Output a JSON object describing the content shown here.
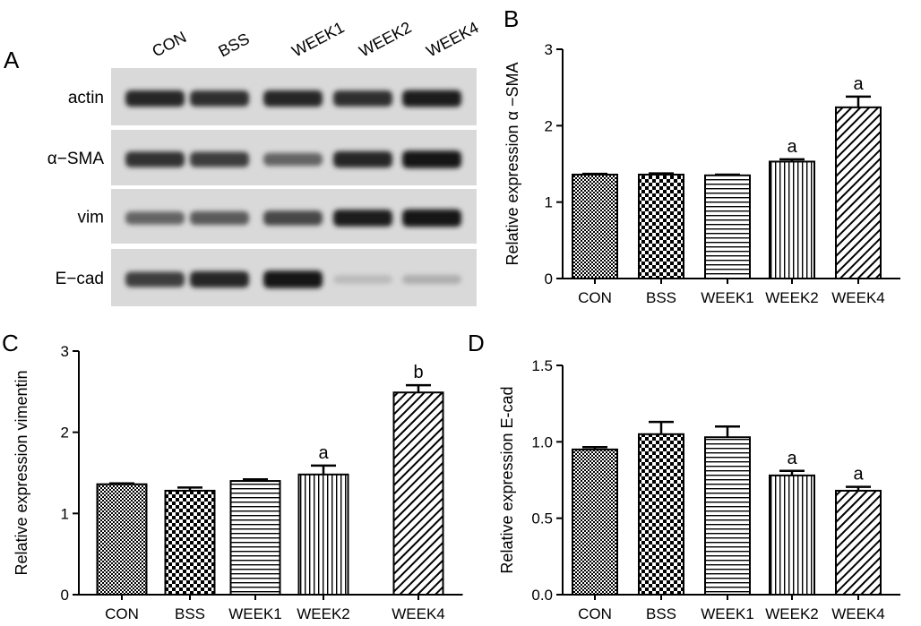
{
  "panel_a": {
    "letter": "A",
    "lanes": [
      "CON",
      "BSS",
      "WEEK1",
      "WEEK2",
      "WEEK4"
    ],
    "rows": [
      {
        "label": "actin",
        "intensity": [
          0.85,
          0.82,
          0.85,
          0.82,
          0.9
        ]
      },
      {
        "label": "α−SMA",
        "intensity": [
          0.8,
          0.75,
          0.55,
          0.85,
          0.95
        ]
      },
      {
        "label": "vim",
        "intensity": [
          0.55,
          0.6,
          0.7,
          0.9,
          0.95
        ]
      },
      {
        "label": "E−cad",
        "intensity": [
          0.75,
          0.85,
          0.95,
          0.12,
          0.18
        ]
      }
    ]
  },
  "chart_data": [
    {
      "panel": "B",
      "type": "bar",
      "categories": [
        "CON",
        "BSS",
        "WEEK1",
        "WEEK2",
        "WEEK4"
      ],
      "values": [
        1.36,
        1.36,
        1.35,
        1.53,
        2.24
      ],
      "errors": [
        0.01,
        0.015,
        0.01,
        0.03,
        0.14
      ],
      "annotations": [
        "",
        "",
        "",
        "a",
        "a"
      ],
      "ylabel": "Relative expression α −SMA",
      "ylim": [
        0,
        3
      ],
      "yticks": [
        0,
        1,
        2,
        3
      ]
    },
    {
      "panel": "C",
      "type": "bar",
      "categories": [
        "CON",
        "BSS",
        "WEEK1",
        "WEEK2",
        "WEEK4"
      ],
      "values": [
        1.36,
        1.28,
        1.4,
        1.48,
        2.49
      ],
      "errors": [
        0.01,
        0.04,
        0.02,
        0.11,
        0.09
      ],
      "annotations": [
        "",
        "",
        "",
        "a",
        "b"
      ],
      "ylabel": "Relative expression vimentin",
      "ylim": [
        0,
        3
      ],
      "yticks": [
        0,
        1,
        2,
        3
      ]
    },
    {
      "panel": "D",
      "type": "bar",
      "categories": [
        "CON",
        "BSS",
        "WEEK1",
        "WEEK2",
        "WEEK4"
      ],
      "values": [
        0.95,
        1.05,
        1.03,
        0.78,
        0.68
      ],
      "errors": [
        0.015,
        0.08,
        0.07,
        0.03,
        0.025
      ],
      "annotations": [
        "",
        "",
        "",
        "a",
        "a"
      ],
      "ylabel": "Relative expression E-cad",
      "ylim": [
        0,
        1.5
      ],
      "yticks": [
        0.0,
        0.5,
        1.0,
        1.5
      ],
      "ytick_labels": [
        "0.0",
        "0.5",
        "1.0",
        "1.5"
      ]
    }
  ]
}
